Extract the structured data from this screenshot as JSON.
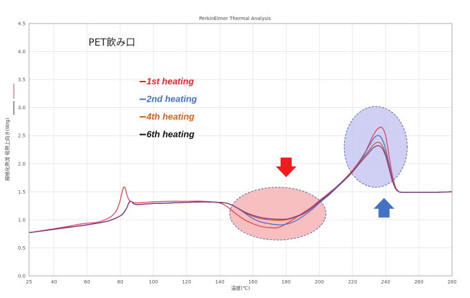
{
  "chart_data": {
    "type": "line",
    "title": "PerkinElmer Thermal Analysis",
    "sample_label": "PET飲み口",
    "xlabel": "温度(℃)",
    "ylabel": "規格化熱流 吸熱上向き(W/g)",
    "xlim": [
      25,
      280
    ],
    "ylim": [
      0,
      4.5
    ],
    "x_ticks": [
      25,
      40,
      60,
      80,
      100,
      120,
      140,
      160,
      180,
      200,
      220,
      240,
      260,
      280
    ],
    "y_ticks": [
      "0.0",
      "0.5",
      "1.0",
      "1.5",
      "2.0",
      "2.5",
      "3.0",
      "3.5",
      "4.0",
      "4.5"
    ],
    "grid": true,
    "legend_position": "upper-left, inside plot",
    "series": [
      {
        "name": "1st heating",
        "color": "#e8424f",
        "legend_color": "#e8262a",
        "x": [
          25,
          40,
          50,
          55,
          60,
          65,
          70,
          75,
          78,
          80,
          81,
          82,
          83,
          84,
          85,
          86,
          88,
          90,
          95,
          100,
          110,
          120,
          130,
          140,
          145,
          150,
          155,
          160,
          165,
          170,
          175,
          180,
          185,
          190,
          195,
          200,
          205,
          210,
          215,
          220,
          225,
          230,
          232,
          234,
          236,
          238,
          240,
          242,
          244,
          246,
          248,
          250,
          255,
          260,
          270,
          280
        ],
        "values": [
          0.77,
          0.84,
          0.89,
          0.92,
          0.94,
          0.95,
          0.99,
          1.07,
          1.18,
          1.35,
          1.48,
          1.58,
          1.56,
          1.45,
          1.37,
          1.33,
          1.31,
          1.3,
          1.31,
          1.32,
          1.33,
          1.33,
          1.33,
          1.3,
          1.22,
          1.1,
          1.0,
          0.93,
          0.88,
          0.86,
          0.86,
          0.93,
          1.02,
          1.12,
          1.22,
          1.34,
          1.46,
          1.58,
          1.7,
          1.85,
          2.05,
          2.35,
          2.48,
          2.58,
          2.64,
          2.64,
          2.5,
          2.15,
          1.8,
          1.58,
          1.5,
          1.49,
          1.49,
          1.49,
          1.49,
          1.5
        ]
      },
      {
        "name": "2nd heating",
        "color": "#4a6fd0",
        "legend_color": "#4472c4",
        "x": [
          25,
          40,
          50,
          60,
          70,
          75,
          80,
          82,
          84,
          85,
          86,
          87,
          88,
          90,
          95,
          100,
          110,
          120,
          130,
          140,
          145,
          150,
          155,
          160,
          165,
          170,
          175,
          180,
          185,
          190,
          195,
          200,
          205,
          210,
          215,
          220,
          225,
          230,
          232,
          234,
          236,
          238,
          240,
          242,
          244,
          246,
          248,
          250,
          255,
          260,
          270,
          280
        ],
        "values": [
          0.77,
          0.83,
          0.87,
          0.91,
          0.96,
          1.0,
          1.07,
          1.12,
          1.22,
          1.29,
          1.33,
          1.32,
          1.29,
          1.27,
          1.28,
          1.29,
          1.3,
          1.31,
          1.32,
          1.31,
          1.29,
          1.22,
          1.12,
          1.02,
          0.96,
          0.93,
          0.91,
          0.92,
          0.97,
          1.06,
          1.17,
          1.3,
          1.42,
          1.56,
          1.7,
          1.88,
          2.08,
          2.32,
          2.42,
          2.49,
          2.5,
          2.43,
          2.26,
          2.0,
          1.74,
          1.56,
          1.5,
          1.49,
          1.49,
          1.49,
          1.49,
          1.5
        ]
      },
      {
        "name": "4th heating",
        "color": "#c85a30",
        "legend_color": "#d0661c",
        "x": [
          25,
          40,
          50,
          60,
          70,
          75,
          80,
          82,
          84,
          85,
          86,
          87,
          88,
          90,
          95,
          100,
          110,
          120,
          130,
          140,
          145,
          150,
          155,
          160,
          165,
          170,
          175,
          180,
          185,
          190,
          195,
          200,
          205,
          210,
          215,
          220,
          225,
          230,
          232,
          234,
          236,
          238,
          240,
          242,
          244,
          246,
          248,
          250,
          255,
          260,
          270,
          280
        ],
        "values": [
          0.77,
          0.83,
          0.87,
          0.91,
          0.96,
          1.0,
          1.07,
          1.12,
          1.22,
          1.29,
          1.33,
          1.32,
          1.29,
          1.27,
          1.28,
          1.29,
          1.3,
          1.31,
          1.32,
          1.31,
          1.29,
          1.22,
          1.13,
          1.06,
          1.02,
          1.0,
          0.99,
          1.0,
          1.04,
          1.1,
          1.2,
          1.32,
          1.44,
          1.58,
          1.72,
          1.88,
          2.06,
          2.24,
          2.32,
          2.37,
          2.38,
          2.32,
          2.18,
          1.95,
          1.72,
          1.56,
          1.5,
          1.49,
          1.49,
          1.49,
          1.49,
          1.5
        ]
      },
      {
        "name": "6th heating",
        "color": "#7a3a8c",
        "legend_color": "#111111",
        "x": [
          25,
          40,
          50,
          60,
          70,
          75,
          80,
          82,
          84,
          85,
          86,
          87,
          88,
          90,
          95,
          100,
          110,
          120,
          130,
          140,
          145,
          150,
          155,
          160,
          165,
          170,
          175,
          180,
          185,
          190,
          195,
          200,
          205,
          210,
          215,
          220,
          225,
          230,
          232,
          234,
          236,
          238,
          240,
          242,
          244,
          246,
          248,
          250,
          255,
          260,
          270,
          280
        ],
        "values": [
          0.77,
          0.83,
          0.87,
          0.91,
          0.96,
          1.0,
          1.07,
          1.12,
          1.22,
          1.29,
          1.33,
          1.32,
          1.29,
          1.27,
          1.28,
          1.29,
          1.3,
          1.31,
          1.32,
          1.31,
          1.29,
          1.22,
          1.14,
          1.08,
          1.04,
          1.02,
          1.01,
          1.01,
          1.05,
          1.11,
          1.2,
          1.32,
          1.44,
          1.57,
          1.71,
          1.86,
          2.03,
          2.2,
          2.27,
          2.31,
          2.32,
          2.27,
          2.14,
          1.92,
          1.7,
          1.55,
          1.5,
          1.49,
          1.49,
          1.49,
          1.49,
          1.5
        ]
      }
    ],
    "annotations": {
      "cold_crystallization_ellipse": {
        "x_range": [
          146,
          204
        ],
        "y_range": [
          0.64,
          1.58
        ],
        "fill": "#f6b8b8",
        "stroke": "#5566aa"
      },
      "melting_ellipse": {
        "x_range": [
          215,
          253
        ],
        "y_range": [
          1.58,
          3.02
        ],
        "fill": "#c7c8f2",
        "stroke": "#5566aa"
      },
      "down_arrow": {
        "x": 180,
        "y_range": [
          1.76,
          2.11
        ],
        "color": "#ee1c1c"
      },
      "up_arrow": {
        "x": 239,
        "y_range": [
          1.04,
          1.39
        ],
        "color": "#4472c4"
      }
    }
  }
}
